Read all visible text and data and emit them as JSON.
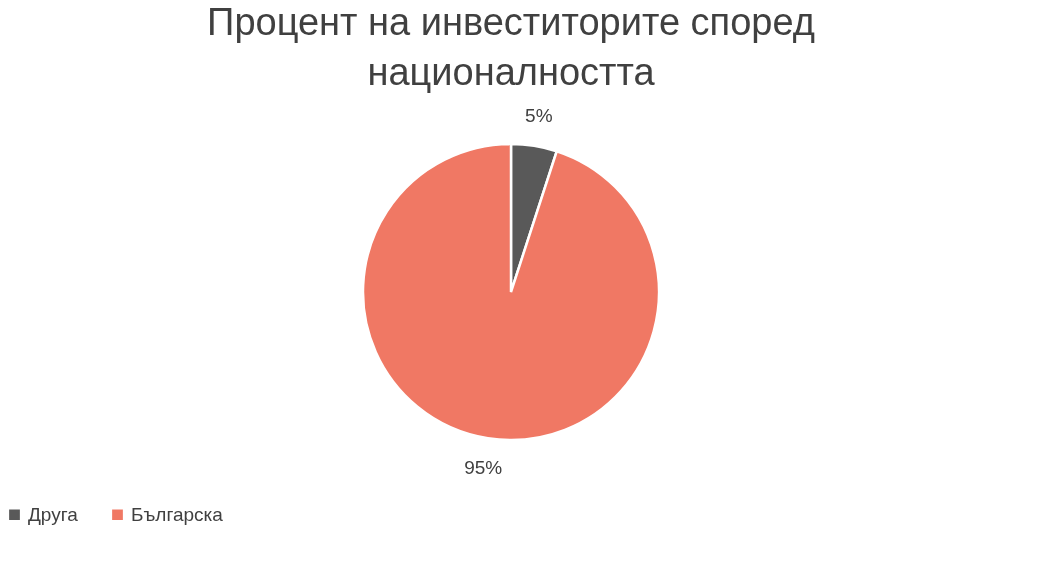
{
  "chart_data": {
    "type": "pie",
    "title": "Процент на инвеститорите според националността",
    "categories": [
      "Друга",
      "Българска"
    ],
    "values": [
      5,
      95
    ],
    "colors": [
      "#595959",
      "#f07864"
    ],
    "value_labels": [
      "5%",
      "95%"
    ],
    "legend": "bottom"
  }
}
